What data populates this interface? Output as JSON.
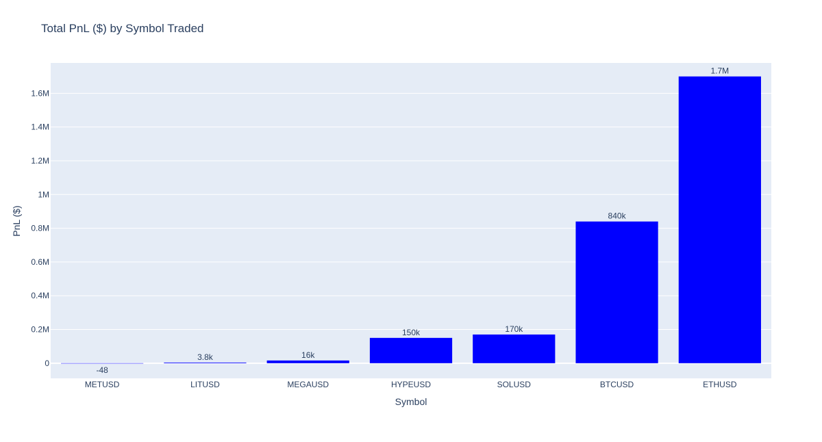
{
  "chart_data": {
    "type": "bar",
    "title": "Total PnL ($) by Symbol Traded",
    "xlabel": "Symbol",
    "ylabel": "PnL ($)",
    "categories": [
      "METUSD",
      "LITUSD",
      "MEGAUSD",
      "HYPEUSD",
      "SOLUSD",
      "BTCUSD",
      "ETHUSD"
    ],
    "values": [
      -48,
      3800,
      16000,
      150000,
      170000,
      840000,
      1700000
    ],
    "data_labels": [
      "-48",
      "3.8k",
      "16k",
      "150k",
      "170k",
      "840k",
      "1.7M"
    ],
    "ylim": [
      -90000,
      1780000
    ],
    "yticks": [
      0,
      200000,
      400000,
      600000,
      800000,
      1000000,
      1200000,
      1400000,
      1600000
    ],
    "ytick_labels": [
      "0",
      "0.2M",
      "0.4M",
      "0.6M",
      "0.8M",
      "1M",
      "1.2M",
      "1.4M",
      "1.6M"
    ],
    "grid": true,
    "colors": {
      "bar": "#0000ff",
      "plot_bg": "#e5ecf6",
      "grid": "#ffffff",
      "text": "#2a3f5f"
    }
  }
}
